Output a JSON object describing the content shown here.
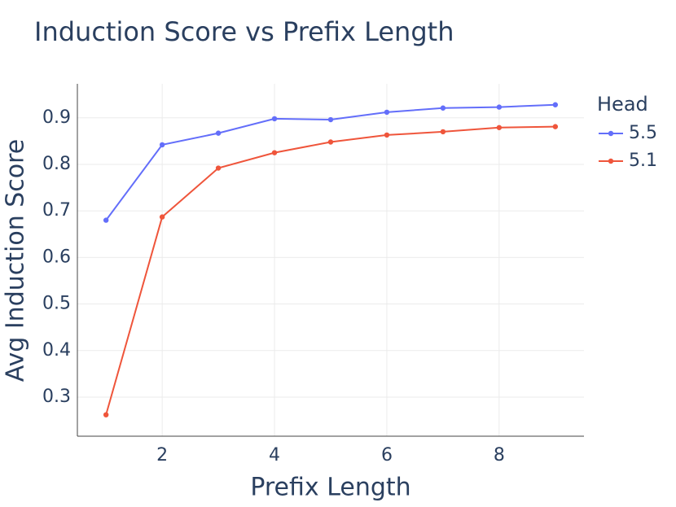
{
  "chart_data": {
    "type": "line",
    "title": "Induction Score vs Prefix Length",
    "x_label": "Prefix Length",
    "y_label": "Avg Induction Score",
    "x": [
      1,
      2,
      3,
      4,
      5,
      6,
      7,
      8,
      9
    ],
    "series": [
      {
        "name": "5.5",
        "color": "#636efa",
        "values": [
          0.68,
          0.842,
          0.867,
          0.898,
          0.896,
          0.912,
          0.921,
          0.923,
          0.928
        ]
      },
      {
        "name": "5.1",
        "color": "#ef553b",
        "values": [
          0.262,
          0.687,
          0.792,
          0.825,
          0.848,
          0.863,
          0.87,
          0.879,
          0.881
        ]
      }
    ],
    "legend_title": "Head",
    "xlim": [
      0.49,
      9.51
    ],
    "xticks": [
      2,
      4,
      6,
      8
    ],
    "ylim": [
      0.216,
      0.973
    ],
    "yticks": [
      0.3,
      0.4,
      0.5,
      0.6,
      0.7,
      0.8,
      0.9
    ],
    "grid": true
  }
}
